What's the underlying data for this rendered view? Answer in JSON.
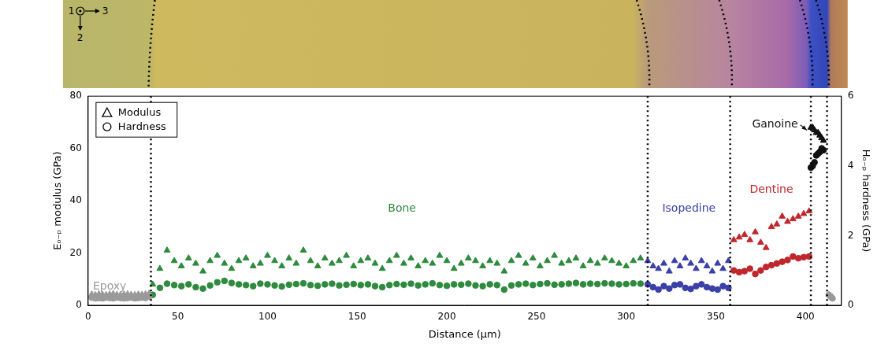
{
  "chart_data": {
    "type": "scatter",
    "x_label": "Distance (µm)",
    "y_label": "Eₒ₋ₚ modulus (GPa)",
    "y2_label": "Hₒ₋ₚ hardness (GPa)",
    "xlim": [
      0,
      420
    ],
    "xticks": [
      0,
      50,
      100,
      150,
      200,
      250,
      300,
      350,
      400
    ],
    "ylim": [
      0,
      80
    ],
    "yticks": [
      0,
      20,
      40,
      60,
      80
    ],
    "y2lim": [
      0,
      6
    ],
    "y2ticks": [
      0,
      2,
      4,
      6
    ],
    "grid": false,
    "legend": "top-left",
    "legend_entries": [
      {
        "label": "Modulus",
        "marker": "triangle"
      },
      {
        "label": "Hardness",
        "marker": "circle"
      }
    ],
    "boundaries": [
      35,
      312,
      358,
      403,
      412
    ],
    "micrograph": {
      "axis_labels": [
        "1",
        "2",
        "3"
      ]
    },
    "series": [
      {
        "name": "Epoxy",
        "color": "#9a9a9a",
        "label_at": [
          12,
          7
        ],
        "x": [
          2,
          4,
          6,
          8,
          10,
          12,
          14,
          16,
          18,
          20,
          22,
          24,
          26,
          28,
          30,
          32,
          34,
          413,
          414,
          415
        ],
        "modulus": [
          4.2,
          4.0,
          4.3,
          4.1,
          4.0,
          4.2,
          4.4,
          4.1,
          4.0,
          4.2,
          4.3,
          4.1,
          4.0,
          4.2,
          4.1,
          4.3,
          4.5,
          4.0,
          3.5,
          3.0
        ],
        "hardness": [
          0.22,
          0.2,
          0.21,
          0.2,
          0.22,
          0.21,
          0.2,
          0.22,
          0.21,
          0.2,
          0.21,
          0.22,
          0.2,
          0.21,
          0.22,
          0.21,
          0.25,
          0.3,
          0.25,
          0.2
        ]
      },
      {
        "name": "Bone",
        "color": "#2e8b3e",
        "label_at": [
          175,
          37
        ],
        "x": [
          36,
          40,
          44,
          48,
          52,
          56,
          60,
          64,
          68,
          72,
          76,
          80,
          84,
          88,
          92,
          96,
          100,
          104,
          108,
          112,
          116,
          120,
          124,
          128,
          132,
          136,
          140,
          144,
          148,
          152,
          156,
          160,
          164,
          168,
          172,
          176,
          180,
          184,
          188,
          192,
          196,
          200,
          204,
          208,
          212,
          216,
          220,
          224,
          228,
          232,
          236,
          240,
          244,
          248,
          252,
          256,
          260,
          264,
          268,
          272,
          276,
          280,
          284,
          288,
          292,
          296,
          300,
          304,
          308
        ],
        "modulus": [
          8,
          14,
          21,
          17,
          15,
          18,
          16,
          13,
          17,
          19,
          16,
          14,
          17,
          18,
          15,
          16,
          19,
          17,
          15,
          18,
          16,
          21,
          17,
          15,
          18,
          16,
          17,
          19,
          15,
          17,
          18,
          16,
          14,
          17,
          19,
          16,
          18,
          15,
          17,
          16,
          19,
          17,
          14,
          16,
          18,
          17,
          15,
          17,
          16,
          13,
          17,
          19,
          16,
          18,
          15,
          17,
          19,
          16,
          17,
          18,
          15,
          17,
          16,
          18,
          17,
          16,
          15,
          17,
          18
        ],
        "hardness": [
          0.3,
          0.5,
          0.62,
          0.58,
          0.55,
          0.6,
          0.52,
          0.48,
          0.57,
          0.66,
          0.7,
          0.64,
          0.6,
          0.58,
          0.55,
          0.62,
          0.6,
          0.57,
          0.54,
          0.59,
          0.61,
          0.63,
          0.58,
          0.56,
          0.6,
          0.62,
          0.57,
          0.59,
          0.61,
          0.58,
          0.6,
          0.55,
          0.52,
          0.58,
          0.61,
          0.59,
          0.62,
          0.57,
          0.6,
          0.63,
          0.58,
          0.56,
          0.6,
          0.59,
          0.62,
          0.57,
          0.55,
          0.6,
          0.58,
          0.45,
          0.57,
          0.6,
          0.62,
          0.58,
          0.61,
          0.63,
          0.59,
          0.6,
          0.62,
          0.64,
          0.6,
          0.62,
          0.61,
          0.63,
          0.62,
          0.6,
          0.61,
          0.63,
          0.62
        ]
      },
      {
        "name": "Isopedine",
        "color": "#3b3fa8",
        "label_at": [
          335,
          37
        ],
        "x": [
          312,
          315,
          318,
          321,
          324,
          327,
          330,
          333,
          336,
          339,
          342,
          345,
          348,
          351,
          354,
          357
        ],
        "modulus": [
          17,
          15,
          14,
          16,
          13,
          17,
          15,
          18,
          16,
          14,
          17,
          15,
          13,
          16,
          14,
          17
        ],
        "hardness": [
          0.6,
          0.52,
          0.45,
          0.55,
          0.48,
          0.58,
          0.6,
          0.5,
          0.47,
          0.55,
          0.6,
          0.52,
          0.48,
          0.45,
          0.55,
          0.5
        ]
      },
      {
        "name": "Dentine",
        "color": "#c0272d",
        "label_at": [
          381,
          44
        ],
        "x": [
          360,
          363,
          366,
          369,
          372,
          375,
          378,
          381,
          384,
          387,
          390,
          393,
          396,
          399,
          402
        ],
        "modulus": [
          25,
          26,
          27,
          25,
          28,
          24,
          22,
          30,
          31,
          34,
          32,
          33,
          34,
          35,
          36
        ],
        "hardness": [
          1.0,
          0.95,
          0.98,
          1.05,
          0.9,
          1.0,
          1.1,
          1.15,
          1.2,
          1.25,
          1.3,
          1.4,
          1.35,
          1.38,
          1.4
        ]
      },
      {
        "name": "Ganoine",
        "color": "#111111",
        "label_at": [
          383,
          69
        ],
        "arrow_to": [
          402.5,
          67
        ],
        "x": [
          403,
          404,
          405,
          406,
          407,
          408,
          409,
          410
        ],
        "modulus": [
          68,
          68,
          67,
          66,
          66,
          65,
          64,
          63
        ],
        "hardness": [
          3.95,
          4.0,
          4.1,
          4.3,
          4.35,
          4.4,
          4.5,
          4.45
        ]
      }
    ]
  }
}
